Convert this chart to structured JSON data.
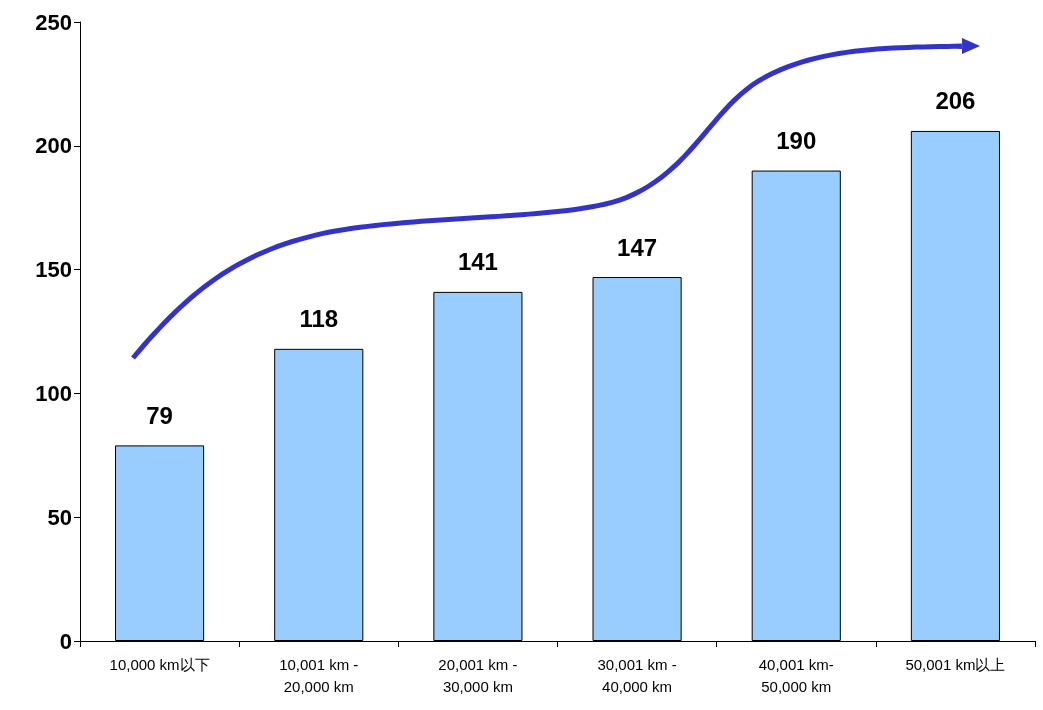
{
  "chart_data": {
    "type": "bar",
    "categories": [
      "10,000 km以下",
      "10,001 km - 20,000 km",
      "20,001 km - 30,000 km",
      "30,001 km - 40,000 km",
      "40,001 km- 50,000 km",
      "50,001 km以上"
    ],
    "values": [
      79,
      118,
      141,
      147,
      190,
      206
    ],
    "color": "#99ccff",
    "ylim": [
      0,
      250
    ],
    "yticks": [
      0,
      50,
      100,
      150,
      200,
      250
    ],
    "data_labels": true,
    "grid": false
  }
}
